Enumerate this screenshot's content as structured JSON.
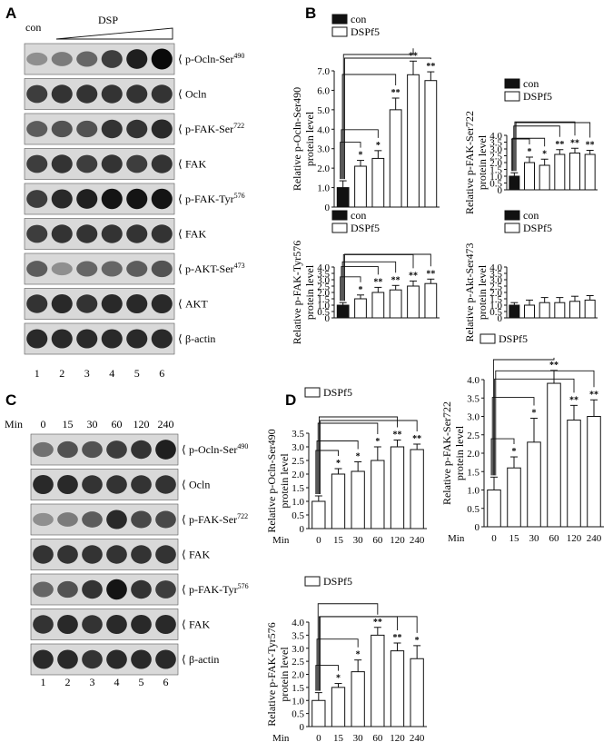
{
  "panels": {
    "A": {
      "letter": "A",
      "con_label": "con",
      "treat_label": "DSP",
      "lanes": [
        "1",
        "2",
        "3",
        "4",
        "5",
        "6"
      ],
      "blots": [
        {
          "label": "p-Ocln-Ser490",
          "base": "p-Ocln-Ser",
          "sup": "490",
          "intensity": [
            0.35,
            0.45,
            0.55,
            0.75,
            0.9,
            1.0
          ]
        },
        {
          "label": "Ocln",
          "base": "Ocln",
          "sup": "",
          "intensity": [
            0.75,
            0.8,
            0.8,
            0.8,
            0.8,
            0.8
          ]
        },
        {
          "label": "p-FAK-Ser722",
          "base": "p-FAK-Ser",
          "sup": "722",
          "intensity": [
            0.6,
            0.65,
            0.65,
            0.8,
            0.8,
            0.85
          ]
        },
        {
          "label": "FAK",
          "base": "FAK",
          "sup": "",
          "intensity": [
            0.75,
            0.8,
            0.75,
            0.8,
            0.75,
            0.8
          ]
        },
        {
          "label": "p-FAK-Tyr576",
          "base": "p-FAK-Tyr",
          "sup": "576",
          "intensity": [
            0.75,
            0.85,
            0.9,
            0.95,
            0.95,
            0.95
          ]
        },
        {
          "label": "FAK",
          "base": "FAK",
          "sup": "",
          "intensity": [
            0.75,
            0.8,
            0.8,
            0.8,
            0.8,
            0.8
          ]
        },
        {
          "label": "p-AKT-Ser473",
          "base": "p-AKT-Ser",
          "sup": "473",
          "intensity": [
            0.6,
            0.35,
            0.55,
            0.55,
            0.6,
            0.65
          ]
        },
        {
          "label": "AKT",
          "base": "AKT",
          "sup": "",
          "intensity": [
            0.8,
            0.85,
            0.8,
            0.85,
            0.85,
            0.85
          ]
        },
        {
          "label": "β-actin",
          "base": "β-actin",
          "sup": "",
          "intensity": [
            0.85,
            0.85,
            0.85,
            0.85,
            0.85,
            0.85
          ]
        }
      ]
    },
    "C": {
      "letter": "C",
      "min_label": "Min",
      "times": [
        "0",
        "15",
        "30",
        "60",
        "120",
        "240"
      ],
      "lanes": [
        "1",
        "2",
        "3",
        "4",
        "5",
        "6"
      ],
      "blots": [
        {
          "label": "p-Ocln-Ser490",
          "base": "p-Ocln-Ser",
          "sup": "490",
          "intensity": [
            0.5,
            0.65,
            0.65,
            0.75,
            0.8,
            0.9
          ]
        },
        {
          "label": "Ocln",
          "base": "Ocln",
          "sup": "",
          "intensity": [
            0.85,
            0.85,
            0.8,
            0.8,
            0.8,
            0.8
          ]
        },
        {
          "label": "p-FAK-Ser722",
          "base": "p-FAK-Ser",
          "sup": "722",
          "intensity": [
            0.35,
            0.45,
            0.6,
            0.85,
            0.7,
            0.7
          ]
        },
        {
          "label": "FAK",
          "base": "FAK",
          "sup": "",
          "intensity": [
            0.8,
            0.8,
            0.8,
            0.8,
            0.8,
            0.8
          ]
        },
        {
          "label": "p-FAK-Tyr576",
          "base": "p-FAK-Tyr",
          "sup": "576",
          "intensity": [
            0.55,
            0.65,
            0.8,
            0.95,
            0.8,
            0.75
          ]
        },
        {
          "label": "FAK",
          "base": "FAK",
          "sup": "",
          "intensity": [
            0.8,
            0.85,
            0.8,
            0.85,
            0.85,
            0.85
          ]
        },
        {
          "label": "β-actin",
          "base": "β-actin",
          "sup": "",
          "intensity": [
            0.85,
            0.85,
            0.8,
            0.85,
            0.85,
            0.85
          ]
        }
      ]
    },
    "B": {
      "letter": "B"
    },
    "D": {
      "letter": "D"
    }
  },
  "chart_data": [
    {
      "id": "B1",
      "type": "bar",
      "panel": "B",
      "ylabel": [
        "Relative p-Ocln-Ser490",
        "protein level"
      ],
      "legend": [
        "con",
        "DSPf5"
      ],
      "ylim": [
        0,
        7.0
      ],
      "yticks": [
        "0",
        "1.0",
        "2.0",
        "3.0",
        "4.0",
        "5.0",
        "6.0",
        "7.0"
      ],
      "values": [
        1.0,
        2.1,
        2.5,
        5.0,
        6.8,
        6.5
      ],
      "errors": [
        0.35,
        0.3,
        0.4,
        0.6,
        0.7,
        0.45
      ],
      "sig": [
        "",
        "*",
        "*",
        "**",
        "**",
        "**"
      ],
      "xlabel": "",
      "xticks": [],
      "min_label": ""
    },
    {
      "id": "B2",
      "type": "bar",
      "panel": "B",
      "ylabel": [
        "Relative p-FAK-Ser722",
        "protein level"
      ],
      "legend": [
        "con",
        "DSPf5"
      ],
      "ylim": [
        0,
        4.0
      ],
      "yticks": [
        "0",
        "0.5",
        "1.0",
        "1.5",
        "2.0",
        "2.5",
        "3.0",
        "3.5",
        "4.0"
      ],
      "values": [
        1.0,
        2.0,
        1.8,
        2.6,
        2.7,
        2.6
      ],
      "errors": [
        0.25,
        0.4,
        0.45,
        0.35,
        0.35,
        0.3
      ],
      "sig": [
        "",
        "*",
        "*",
        "**",
        "**",
        "**"
      ],
      "xlabel": "",
      "xticks": [],
      "min_label": ""
    },
    {
      "id": "B3",
      "type": "bar",
      "panel": "B",
      "ylabel": [
        "Relative p-FAK-Tyr576",
        "protein level"
      ],
      "legend": [
        "con",
        "DSPf5"
      ],
      "ylim": [
        0,
        4.0
      ],
      "yticks": [
        "0",
        "0.5",
        "1.0",
        "1.5",
        "2.0",
        "2.5",
        "3.0",
        "3.5",
        "4.0"
      ],
      "values": [
        1.0,
        1.5,
        2.0,
        2.2,
        2.5,
        2.7
      ],
      "errors": [
        0.2,
        0.3,
        0.4,
        0.35,
        0.4,
        0.35
      ],
      "sig": [
        "",
        "*",
        "**",
        "**",
        "**",
        "**"
      ],
      "xlabel": "",
      "xticks": [],
      "min_label": ""
    },
    {
      "id": "B4",
      "type": "bar",
      "panel": "B",
      "ylabel": [
        "Relative p-Akt-Ser473",
        "protein level"
      ],
      "legend": [
        "con",
        "DSPf5"
      ],
      "ylim": [
        0,
        4.0
      ],
      "yticks": [
        "0",
        "0.5",
        "1.0",
        "1.5",
        "2.0",
        "2.5",
        "3.0",
        "3.5",
        "4.0"
      ],
      "values": [
        1.0,
        1.0,
        1.2,
        1.2,
        1.3,
        1.4
      ],
      "errors": [
        0.2,
        0.4,
        0.4,
        0.4,
        0.4,
        0.35
      ],
      "sig": [
        "",
        "",
        "",
        "",
        "",
        ""
      ],
      "xlabel": "",
      "xticks": [],
      "min_label": ""
    },
    {
      "id": "D1",
      "type": "bar",
      "panel": "D",
      "ylabel": [
        "Relative p-Ocln-Ser490",
        "protein level"
      ],
      "legend": [
        "DSPf5"
      ],
      "ylim": [
        0,
        3.5
      ],
      "yticks": [
        "0",
        "0.5",
        "1.0",
        "1.5",
        "2.0",
        "2.5",
        "3.0",
        "3.5"
      ],
      "values": [
        1.0,
        2.0,
        2.1,
        2.5,
        3.0,
        2.9
      ],
      "errors": [
        0.2,
        0.2,
        0.35,
        0.5,
        0.25,
        0.2
      ],
      "sig": [
        "",
        "*",
        "*",
        "*",
        "**",
        "**"
      ],
      "min_label": "Min",
      "xticks": [
        "0",
        "15",
        "30",
        "60",
        "120",
        "240"
      ]
    },
    {
      "id": "D2",
      "type": "bar",
      "panel": "D",
      "ylabel": [
        "Relative p-FAK-Ser722",
        "protein level"
      ],
      "legend": [
        "DSPf5"
      ],
      "ylim": [
        0,
        4.0
      ],
      "yticks": [
        "0",
        "0.5",
        "1.0",
        "1.5",
        "2.0",
        "2.5",
        "3.0",
        "3.5",
        "4.0"
      ],
      "values": [
        1.0,
        1.6,
        2.3,
        3.9,
        2.9,
        3.0
      ],
      "errors": [
        0.35,
        0.3,
        0.65,
        0.35,
        0.4,
        0.45
      ],
      "sig": [
        "",
        "*",
        "*",
        "**",
        "**",
        "**"
      ],
      "min_label": "Min",
      "xticks": [
        "0",
        "15",
        "30",
        "60",
        "120",
        "240"
      ]
    },
    {
      "id": "D3",
      "type": "bar",
      "panel": "D",
      "ylabel": [
        "Relative p-FAK-Tyr576",
        "protein level"
      ],
      "legend": [
        "DSPf5"
      ],
      "ylim": [
        0,
        4.0
      ],
      "yticks": [
        "0",
        "0.5",
        "1.0",
        "1.5",
        "2.0",
        "2.5",
        "3.0",
        "3.5",
        "4.0"
      ],
      "values": [
        1.0,
        1.5,
        2.1,
        3.5,
        2.9,
        2.6
      ],
      "errors": [
        0.3,
        0.15,
        0.45,
        0.3,
        0.3,
        0.5
      ],
      "sig": [
        "",
        "*",
        "*",
        "**",
        "**",
        "*"
      ],
      "min_label": "Min",
      "xticks": [
        "0",
        "15",
        "30",
        "60",
        "120",
        "240"
      ]
    }
  ]
}
